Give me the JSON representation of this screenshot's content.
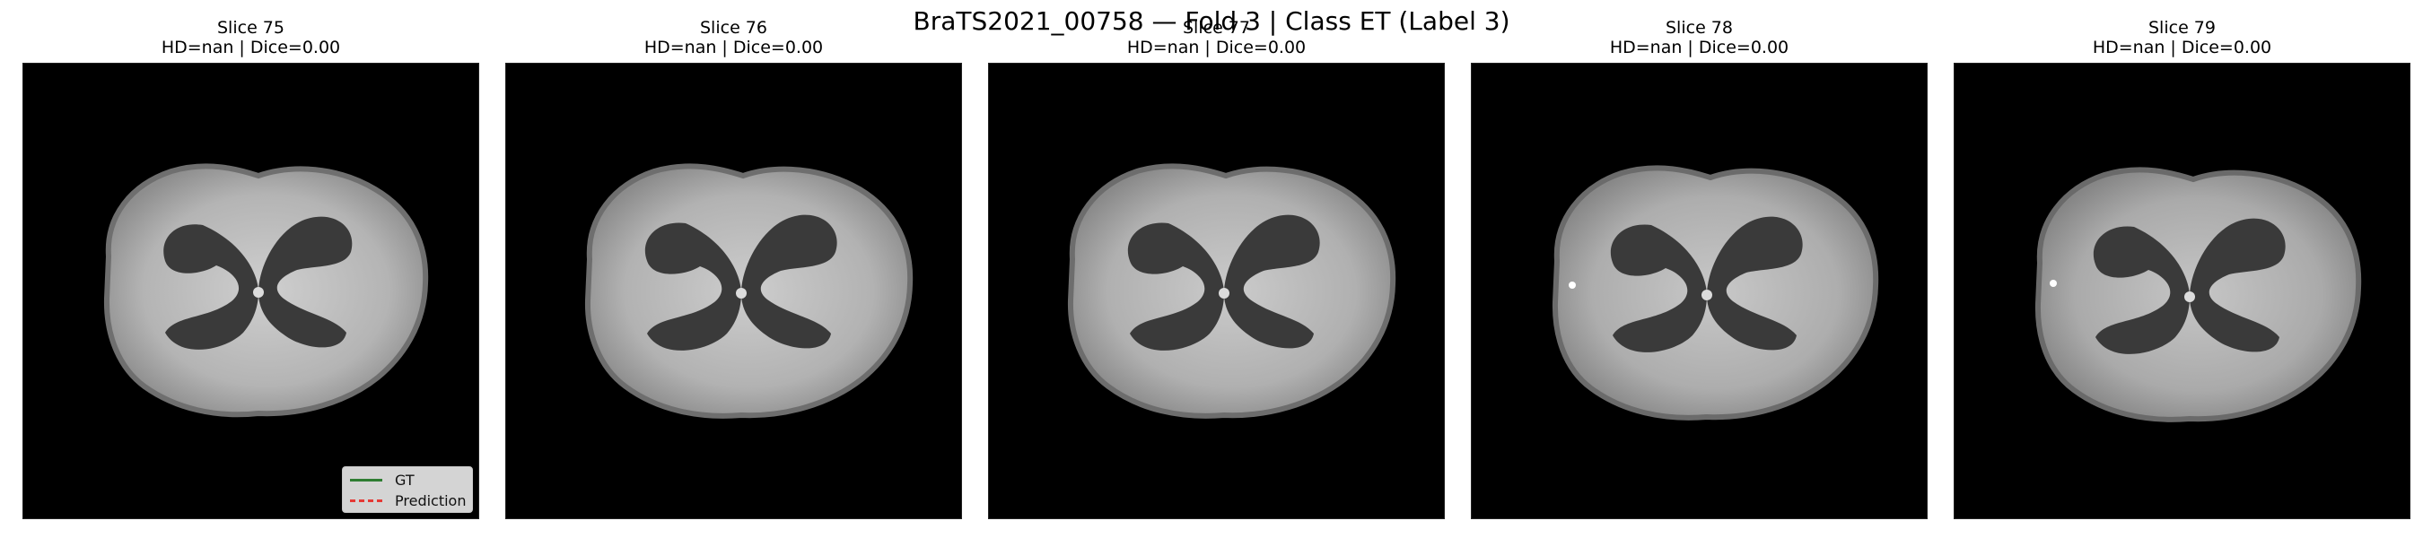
{
  "figure": {
    "title": "BraTS2021_00758 — Fold 3 | Class ET (Label 3)"
  },
  "panels": [
    {
      "title": "Slice 75",
      "metrics": "HD=nan | Dice=0.00"
    },
    {
      "title": "Slice 76",
      "metrics": "HD=nan | Dice=0.00"
    },
    {
      "title": "Slice 77",
      "metrics": "HD=nan | Dice=0.00"
    },
    {
      "title": "Slice 78",
      "metrics": "HD=nan | Dice=0.00"
    },
    {
      "title": "Slice 79",
      "metrics": "HD=nan | Dice=0.00"
    }
  ],
  "legend": {
    "gt_label": "GT",
    "pred_label": "Prediction",
    "gt_color": "#2e7d32",
    "pred_color": "#e53935"
  }
}
